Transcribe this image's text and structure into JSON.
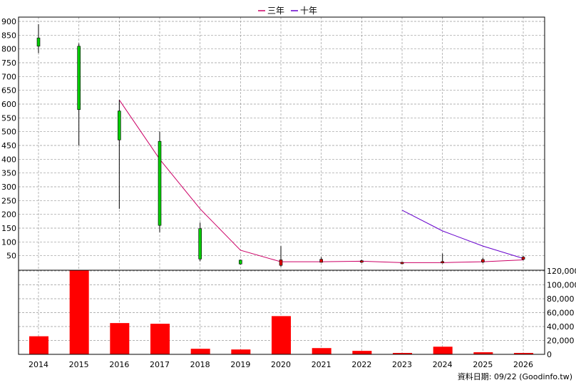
{
  "chart_data": {
    "type": "candlestick",
    "categories": [
      "2014",
      "2015",
      "2016",
      "2017",
      "2018",
      "2019",
      "2020",
      "2021",
      "2022",
      "2023",
      "2024",
      "2025",
      "2026"
    ],
    "candles": [
      {
        "open": 810,
        "close": 840,
        "high": 890,
        "low": 785
      },
      {
        "open": 580,
        "close": 810,
        "high": 820,
        "low": 450
      },
      {
        "open": 470,
        "close": 575,
        "high": 615,
        "low": 220
      },
      {
        "open": 160,
        "close": 465,
        "high": 500,
        "low": 135
      },
      {
        "open": 38,
        "close": 148,
        "high": 170,
        "low": 30
      },
      {
        "open": 20,
        "close": 34,
        "high": 36,
        "low": 18
      },
      {
        "open": 35,
        "close": 15,
        "high": 85,
        "low": 10
      },
      {
        "open": 37,
        "close": 26,
        "high": 45,
        "low": 25
      },
      {
        "open": 32,
        "close": 26,
        "high": 36,
        "low": 24
      },
      {
        "open": 26,
        "close": 25,
        "high": 28,
        "low": 23
      },
      {
        "open": 29,
        "close": 25,
        "high": 58,
        "low": 22
      },
      {
        "open": 36,
        "close": 27,
        "high": 42,
        "low": 23
      },
      {
        "open": 45,
        "close": 37,
        "high": 50,
        "low": 33
      }
    ],
    "series": [
      {
        "name": "三年",
        "color": "#cc0066",
        "values": [
          null,
          null,
          615,
          400,
          220,
          70,
          28,
          28,
          30,
          25,
          25,
          28,
          35
        ]
      },
      {
        "name": "十年",
        "color": "#6600cc",
        "values": [
          null,
          null,
          null,
          null,
          null,
          null,
          null,
          null,
          null,
          215,
          140,
          85,
          40
        ]
      }
    ],
    "volume": [
      26000,
      121000,
      45000,
      44000,
      8000,
      7000,
      55000,
      9000,
      5000,
      2000,
      11000,
      3000,
      2000
    ],
    "price_axis": {
      "ylim": [
        0,
        900
      ],
      "ticks": [
        50,
        100,
        150,
        200,
        250,
        300,
        350,
        400,
        450,
        500,
        550,
        600,
        650,
        700,
        750,
        800,
        850,
        900
      ]
    },
    "volume_axis": {
      "ylim": [
        0,
        120000
      ],
      "ticks": [
        0,
        20000,
        40000,
        60000,
        80000,
        100000,
        120000
      ],
      "tick_labels": [
        "0",
        "20,000",
        "40,000",
        "60,000",
        "80,000",
        "100,000",
        "120,000"
      ]
    },
    "grid": true,
    "legend_position": "top-center",
    "colors": {
      "up": "#00cc00",
      "down": "#dd0000",
      "volume": "#ff0000",
      "wick": "#000000",
      "grid": "#999999"
    }
  },
  "legend": [
    {
      "label": "三年",
      "color": "#cc0066"
    },
    {
      "label": "十年",
      "color": "#6600cc"
    }
  ],
  "footer": {
    "text": "資料日期: 09/22 (Goodinfo.tw)"
  }
}
